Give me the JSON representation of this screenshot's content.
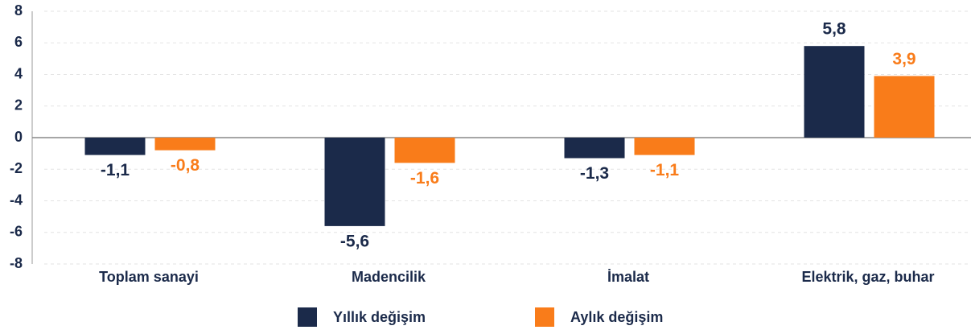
{
  "chart_data": {
    "type": "bar",
    "categories": [
      "Toplam sanayi",
      "Madencilik",
      "İmalat",
      "Elektrik, gaz, buhar"
    ],
    "series": [
      {
        "name": "Yıllık değişim",
        "color": "#1b2a4a",
        "values": [
          -1.1,
          -5.6,
          -1.3,
          5.8
        ],
        "value_labels": [
          "-1,1",
          "-5,6",
          "-1,3",
          "5,8"
        ]
      },
      {
        "name": "Aylık değişim",
        "color": "#f97c1a",
        "values": [
          -0.8,
          -1.6,
          -1.1,
          3.9
        ],
        "value_labels": [
          "-0,8",
          "-1,6",
          "-1,1",
          "3,9"
        ]
      }
    ],
    "ylim": [
      -8,
      8
    ],
    "yticks": [
      -8,
      -6,
      -4,
      -2,
      0,
      2,
      4,
      6,
      8
    ],
    "grid": true,
    "legend": "bottom"
  }
}
